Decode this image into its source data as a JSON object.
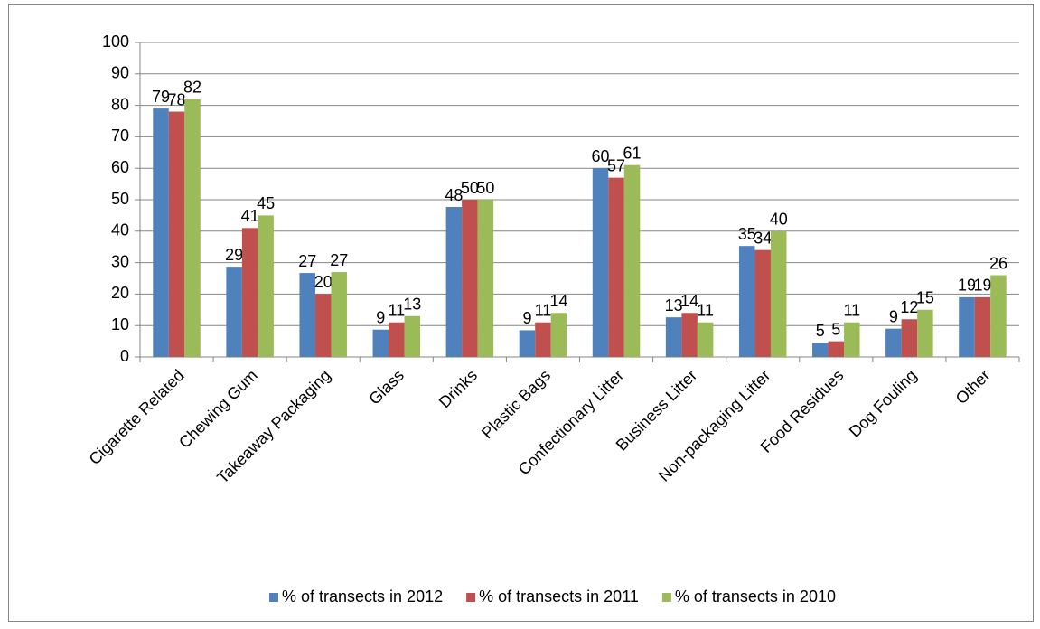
{
  "chart_data": {
    "type": "bar",
    "categories": [
      "Cigarette Related",
      "Chewing Gum",
      "Takeaway Packaging",
      "Glass",
      "Drinks",
      "Plastic Bags",
      "Confectionary Litter",
      "Business Litter",
      "Non-packaging Litter",
      "Food Residues",
      "Dog Fouling",
      "Other"
    ],
    "series": [
      {
        "name": "% of transects in 2012",
        "color": "#4f81bd",
        "values": [
          79,
          28.7,
          26.7,
          8.7,
          47.7,
          8.5,
          60,
          12.6,
          35.3,
          4.5,
          9,
          19
        ],
        "value_labels": [
          "79",
          "29",
          "27",
          "9",
          "48",
          "9",
          "60",
          "13",
          "35",
          "5",
          "9",
          "19"
        ]
      },
      {
        "name": "% of transects in 2011",
        "color": "#c0504d",
        "values": [
          78,
          41,
          20,
          11,
          50,
          11,
          57,
          14,
          34,
          5,
          12,
          19
        ]
      },
      {
        "name": "% of transects in 2010",
        "color": "#9bbb59",
        "values": [
          82,
          45,
          27,
          13,
          50,
          14,
          61,
          11,
          40,
          11,
          15,
          26
        ]
      }
    ],
    "ylim": [
      0,
      100
    ],
    "yticks": [
      0,
      10,
      20,
      30,
      40,
      50,
      60,
      70,
      80,
      90,
      100
    ],
    "grid": true,
    "legend": "bottom"
  }
}
